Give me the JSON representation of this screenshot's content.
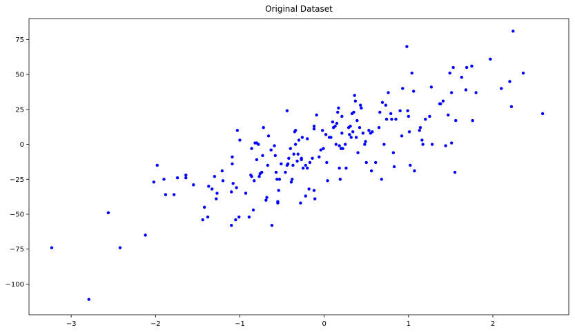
{
  "chart_data": {
    "type": "scatter",
    "title": "Original Dataset",
    "xlabel": "",
    "ylabel": "",
    "xlim": [
      -3.5,
      2.9
    ],
    "ylim": [
      -122,
      90
    ],
    "xticks": [
      -3,
      -2,
      -1,
      0,
      1,
      2
    ],
    "yticks": [
      -100,
      -75,
      -50,
      -25,
      0,
      25,
      50,
      75
    ],
    "xtick_labels": [
      "−3",
      "−2",
      "−1",
      "0",
      "1",
      "2"
    ],
    "ytick_labels": [
      "−100",
      "−75",
      "−50",
      "−25",
      "0",
      "25",
      "50",
      "75"
    ],
    "grid": false,
    "marker_color": "#0000ff",
    "series": [
      {
        "points": [
          [
            -3.23,
            -74
          ],
          [
            -2.79,
            -111
          ],
          [
            -2.56,
            -49
          ],
          [
            -2.42,
            -74
          ],
          [
            -2.12,
            -65
          ],
          [
            -2.02,
            -27
          ],
          [
            -1.98,
            -15
          ],
          [
            -1.9,
            -25
          ],
          [
            -1.88,
            -36
          ],
          [
            -1.78,
            -36
          ],
          [
            -1.74,
            -24
          ],
          [
            -1.64,
            -22
          ],
          [
            -1.64,
            -24
          ],
          [
            -1.55,
            -29
          ],
          [
            -1.44,
            -54
          ],
          [
            -1.42,
            -45
          ],
          [
            -1.38,
            -52
          ],
          [
            -1.37,
            -30
          ],
          [
            -1.33,
            -32
          ],
          [
            -1.3,
            -23
          ],
          [
            -1.28,
            -39
          ],
          [
            -1.27,
            -35
          ],
          [
            -1.21,
            -19
          ],
          [
            -1.2,
            -26
          ],
          [
            -1.1,
            -58
          ],
          [
            -1.1,
            -34
          ],
          [
            -1.09,
            -9
          ],
          [
            -1.09,
            -14
          ],
          [
            -1.08,
            -28
          ],
          [
            -1.05,
            -54
          ],
          [
            -1.04,
            -31
          ],
          [
            -1.03,
            10
          ],
          [
            -1.01,
            -52
          ],
          [
            -1.0,
            3
          ],
          [
            -0.93,
            -35
          ],
          [
            -0.89,
            -52
          ],
          [
            -0.87,
            -22
          ],
          [
            -0.86,
            -3
          ],
          [
            -0.86,
            -23
          ],
          [
            -0.84,
            -47
          ],
          [
            -0.83,
            -26
          ],
          [
            -0.82,
            1
          ],
          [
            -0.8,
            -11
          ],
          [
            -0.8,
            1
          ],
          [
            -0.78,
            0
          ],
          [
            -0.77,
            -23
          ],
          [
            -0.76,
            -21
          ],
          [
            -0.74,
            -20
          ],
          [
            -0.73,
            -8
          ],
          [
            -0.72,
            12
          ],
          [
            -0.69,
            -40
          ],
          [
            -0.68,
            -38
          ],
          [
            -0.67,
            -15
          ],
          [
            -0.66,
            6
          ],
          [
            -0.63,
            -4
          ],
          [
            -0.62,
            -58
          ],
          [
            -0.59,
            -1
          ],
          [
            -0.58,
            -8
          ],
          [
            -0.57,
            -20
          ],
          [
            -0.56,
            -25
          ],
          [
            -0.55,
            -41
          ],
          [
            -0.55,
            -42
          ],
          [
            -0.54,
            -33
          ],
          [
            -0.53,
            -25
          ],
          [
            -0.51,
            -14
          ],
          [
            -0.46,
            -20
          ],
          [
            -0.44,
            24
          ],
          [
            -0.44,
            -15
          ],
          [
            -0.43,
            -14
          ],
          [
            -0.42,
            -10
          ],
          [
            -0.4,
            -3
          ],
          [
            -0.39,
            -27
          ],
          [
            -0.38,
            -25
          ],
          [
            -0.37,
            -15
          ],
          [
            -0.36,
            -7
          ],
          [
            -0.35,
            9
          ],
          [
            -0.34,
            10
          ],
          [
            -0.34,
            0
          ],
          [
            -0.32,
            -12
          ],
          [
            -0.31,
            -7
          ],
          [
            -0.3,
            3
          ],
          [
            -0.28,
            -42
          ],
          [
            -0.27,
            -11
          ],
          [
            -0.27,
            -10
          ],
          [
            -0.26,
            5
          ],
          [
            -0.25,
            -17
          ],
          [
            -0.22,
            -15
          ],
          [
            -0.22,
            -37
          ],
          [
            -0.2,
            -17
          ],
          [
            -0.2,
            4
          ],
          [
            -0.18,
            -32
          ],
          [
            -0.17,
            -13
          ],
          [
            -0.14,
            -10
          ],
          [
            -0.12,
            -33
          ],
          [
            -0.12,
            11
          ],
          [
            -0.12,
            13
          ],
          [
            -0.11,
            -39
          ],
          [
            -0.09,
            21
          ],
          [
            -0.06,
            -9
          ],
          [
            -0.04,
            -4
          ],
          [
            -0.02,
            10
          ],
          [
            -0.01,
            -3
          ],
          [
            0.02,
            7
          ],
          [
            0.03,
            -13
          ],
          [
            0.04,
            -26
          ],
          [
            0.06,
            5
          ],
          [
            0.08,
            5
          ],
          [
            0.1,
            16
          ],
          [
            0.11,
            12
          ],
          [
            0.13,
            13
          ],
          [
            0.14,
            0
          ],
          [
            0.15,
            15
          ],
          [
            0.16,
            23
          ],
          [
            0.17,
            26
          ],
          [
            0.18,
            -17
          ],
          [
            0.18,
            -1
          ],
          [
            0.19,
            -25
          ],
          [
            0.2,
            -3
          ],
          [
            0.21,
            8
          ],
          [
            0.21,
            20
          ],
          [
            0.22,
            -3
          ],
          [
            0.25,
            0
          ],
          [
            0.26,
            -17
          ],
          [
            0.29,
            12
          ],
          [
            0.3,
            7
          ],
          [
            0.31,
            13
          ],
          [
            0.32,
            5
          ],
          [
            0.33,
            22
          ],
          [
            0.34,
            9
          ],
          [
            0.35,
            23
          ],
          [
            0.36,
            35
          ],
          [
            0.37,
            31
          ],
          [
            0.38,
            5
          ],
          [
            0.39,
            17
          ],
          [
            0.4,
            -6
          ],
          [
            0.42,
            12
          ],
          [
            0.43,
            28
          ],
          [
            0.44,
            26
          ],
          [
            0.46,
            8
          ],
          [
            0.48,
            0
          ],
          [
            0.49,
            2
          ],
          [
            0.5,
            -13
          ],
          [
            0.53,
            10
          ],
          [
            0.55,
            8
          ],
          [
            0.56,
            -19
          ],
          [
            0.57,
            9
          ],
          [
            0.61,
            -13
          ],
          [
            0.65,
            12
          ],
          [
            0.66,
            23
          ],
          [
            0.68,
            -25
          ],
          [
            0.69,
            30
          ],
          [
            0.71,
            0
          ],
          [
            0.73,
            28
          ],
          [
            0.74,
            18
          ],
          [
            0.76,
            37
          ],
          [
            0.79,
            22
          ],
          [
            0.8,
            18
          ],
          [
            0.82,
            -6
          ],
          [
            0.83,
            -16
          ],
          [
            0.85,
            18
          ],
          [
            0.9,
            24
          ],
          [
            0.92,
            6
          ],
          [
            0.93,
            40
          ],
          [
            0.98,
            70
          ],
          [
            0.99,
            24
          ],
          [
            1.0,
            20
          ],
          [
            1.01,
            9
          ],
          [
            1.02,
            -15
          ],
          [
            1.04,
            51
          ],
          [
            1.06,
            38
          ],
          [
            1.07,
            -19
          ],
          [
            1.13,
            10
          ],
          [
            1.14,
            12
          ],
          [
            1.16,
            3
          ],
          [
            1.17,
            0
          ],
          [
            1.2,
            18
          ],
          [
            1.25,
            20
          ],
          [
            1.27,
            41
          ],
          [
            1.28,
            0
          ],
          [
            1.37,
            29
          ],
          [
            1.38,
            29
          ],
          [
            1.41,
            31
          ],
          [
            1.44,
            -1
          ],
          [
            1.47,
            21
          ],
          [
            1.49,
            51
          ],
          [
            1.51,
            37
          ],
          [
            1.51,
            1
          ],
          [
            1.53,
            55
          ],
          [
            1.55,
            -20
          ],
          [
            1.56,
            17
          ],
          [
            1.63,
            48
          ],
          [
            1.68,
            39
          ],
          [
            1.69,
            55
          ],
          [
            1.75,
            56
          ],
          [
            1.76,
            17
          ],
          [
            1.8,
            37
          ],
          [
            1.97,
            61
          ],
          [
            2.1,
            40
          ],
          [
            2.2,
            45
          ],
          [
            2.22,
            27
          ],
          [
            2.24,
            81
          ],
          [
            2.36,
            51
          ],
          [
            2.59,
            22
          ]
        ]
      }
    ]
  }
}
